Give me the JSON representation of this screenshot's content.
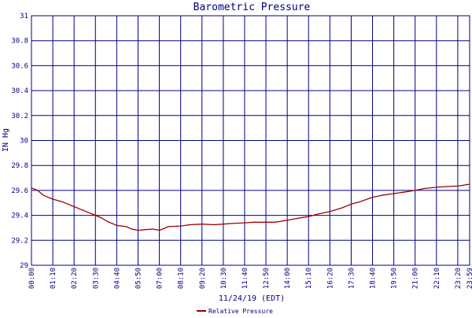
{
  "chart_data": {
    "type": "line",
    "title": "Barometric Pressure",
    "xlabel": "11/24/19 (EDT)",
    "ylabel": "IN Hg",
    "ylim": [
      29,
      31
    ],
    "y_ticks": [
      "29",
      "29.2",
      "29.4",
      "29.6",
      "29.8",
      "30",
      "30.2",
      "30.4",
      "30.6",
      "30.8",
      "31"
    ],
    "x_ticks": [
      "00:00",
      "01:10",
      "02:20",
      "03:30",
      "04:40",
      "05:50",
      "07:00",
      "08:10",
      "09:20",
      "10:30",
      "11:40",
      "12:50",
      "14:00",
      "15:10",
      "16:20",
      "17:30",
      "18:40",
      "19:50",
      "21:00",
      "22:10",
      "23:20",
      "23:59"
    ],
    "grid": true,
    "legend_position": "bottom",
    "series": [
      {
        "name": "Relative Pressure",
        "color": "#a00000",
        "x": [
          "00:00",
          "00:20",
          "00:40",
          "01:10",
          "01:40",
          "02:20",
          "02:50",
          "03:20",
          "03:50",
          "04:10",
          "04:40",
          "05:10",
          "05:30",
          "05:50",
          "06:10",
          "06:40",
          "07:00",
          "07:30",
          "08:10",
          "08:40",
          "09:20",
          "10:00",
          "10:30",
          "11:00",
          "11:40",
          "12:10",
          "12:50",
          "13:20",
          "14:00",
          "14:30",
          "15:10",
          "15:40",
          "16:20",
          "17:00",
          "17:30",
          "18:00",
          "18:40",
          "19:10",
          "19:50",
          "20:20",
          "21:00",
          "21:30",
          "22:10",
          "22:40",
          "23:20",
          "23:59"
        ],
        "values": [
          29.62,
          29.6,
          29.56,
          29.53,
          29.51,
          29.47,
          29.44,
          29.41,
          29.38,
          29.35,
          29.32,
          29.31,
          29.29,
          29.28,
          29.285,
          29.29,
          29.28,
          29.31,
          29.315,
          29.325,
          29.33,
          29.325,
          29.33,
          29.335,
          29.34,
          29.345,
          29.345,
          29.345,
          29.36,
          29.375,
          29.39,
          29.41,
          29.43,
          29.46,
          29.49,
          29.51,
          29.545,
          29.56,
          29.575,
          29.585,
          29.6,
          29.615,
          29.625,
          29.63,
          29.635,
          29.65
        ]
      }
    ]
  }
}
